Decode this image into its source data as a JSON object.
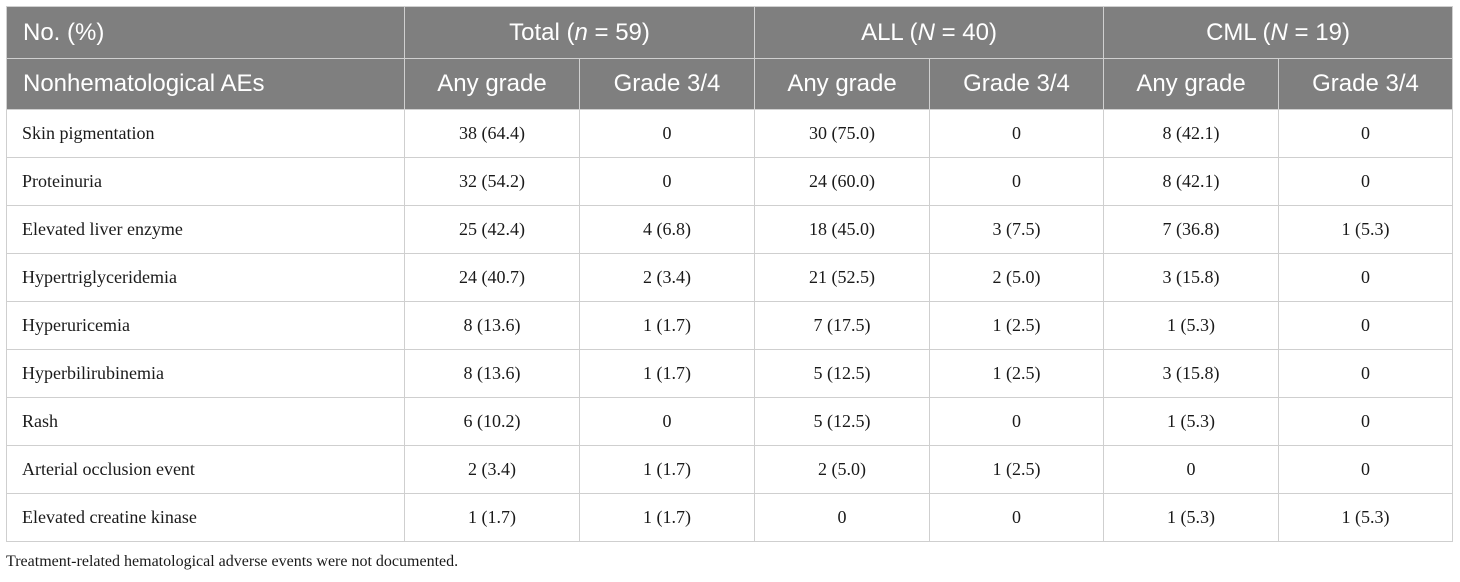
{
  "table": {
    "header_row1": [
      {
        "pre": "No. (%)",
        "var": "",
        "post": ""
      },
      {
        "pre": "Total (",
        "var": "n",
        "post": " = 59)"
      },
      {
        "pre": "ALL (",
        "var": "N",
        "post": " = 40)"
      },
      {
        "pre": "CML (",
        "var": "N",
        "post": " = 19)"
      }
    ],
    "header_row2": [
      "Nonhematological AEs",
      "Any grade",
      "Grade 3/4",
      "Any grade",
      "Grade 3/4",
      "Any grade",
      "Grade 3/4"
    ],
    "rows": [
      [
        "Skin pigmentation",
        "38 (64.4)",
        "0",
        "30 (75.0)",
        "0",
        "8 (42.1)",
        "0"
      ],
      [
        "Proteinuria",
        "32 (54.2)",
        "0",
        "24 (60.0)",
        "0",
        "8 (42.1)",
        "0"
      ],
      [
        "Elevated liver enzyme",
        "25 (42.4)",
        "4 (6.8)",
        "18 (45.0)",
        "3 (7.5)",
        "7 (36.8)",
        "1 (5.3)"
      ],
      [
        "Hypertriglyceridemia",
        "24 (40.7)",
        "2 (3.4)",
        "21 (52.5)",
        "2 (5.0)",
        "3 (15.8)",
        "0"
      ],
      [
        "Hyperuricemia",
        "8 (13.6)",
        "1 (1.7)",
        "7 (17.5)",
        "1 (2.5)",
        "1 (5.3)",
        "0"
      ],
      [
        "Hyperbilirubinemia",
        "8 (13.6)",
        "1 (1.7)",
        "5 (12.5)",
        "1 (2.5)",
        "3 (15.8)",
        "0"
      ],
      [
        "Rash",
        "6 (10.2)",
        "0",
        "5 (12.5)",
        "0",
        "1 (5.3)",
        "0"
      ],
      [
        "Arterial occlusion event",
        "2 (3.4)",
        "1 (1.7)",
        "2 (5.0)",
        "1 (2.5)",
        "0",
        "0"
      ],
      [
        "Elevated creatine kinase",
        "1 (1.7)",
        "1 (1.7)",
        "0",
        "0",
        "1 (5.3)",
        "1 (5.3)"
      ]
    ]
  },
  "footnote": "Treatment-related hematological adverse events were not documented.",
  "colors": {
    "header_bg": "#7f7f7f",
    "header_text": "#ffffff",
    "border": "#cfcfcf"
  }
}
